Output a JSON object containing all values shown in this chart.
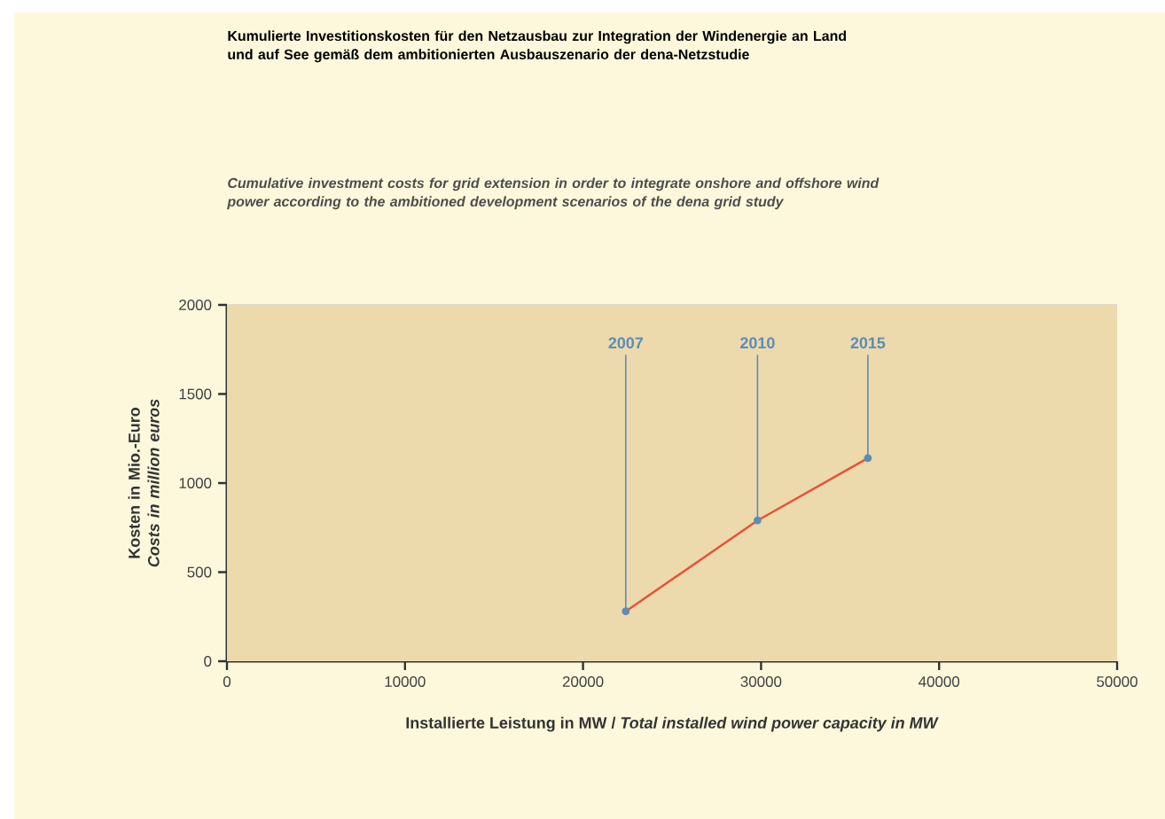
{
  "chart_data": {
    "type": "line",
    "title": "Kumulierte Investitionskosten für den Netzausbau zur Integration der Windenergie an Land und auf See gemäß dem ambitionierten Ausbauszenario der dena-Netzstudie",
    "subtitle": "Cumulative investment costs for grid extension in order to integrate onshore and offshore wind power according to the ambitioned development scenarios of the dena grid study",
    "xlabel": "Installierte Leistung in MW / *Total installed wind power capacity in MW*",
    "ylabel": "Kosten in Mio.-Euro *Costs in million euros*",
    "x": [
      22400,
      29800,
      36000
    ],
    "series": [
      {
        "color": "#e8503a",
        "values": [
          280,
          790,
          1140
        ]
      }
    ],
    "marker": "circle",
    "annotations": [
      {
        "text": "2007",
        "x": 22400,
        "y": 280
      },
      {
        "text": "2010",
        "x": 29800,
        "y": 790
      },
      {
        "text": "2015",
        "x": 36000,
        "y": 1140
      }
    ],
    "xlim": [
      0,
      50000
    ],
    "xticks": [
      0,
      10000,
      20000,
      30000,
      40000,
      50000
    ],
    "ylim": [
      0,
      2000
    ],
    "yticks": [
      0,
      500,
      1000,
      1500,
      2000
    ],
    "grid": "y"
  }
}
